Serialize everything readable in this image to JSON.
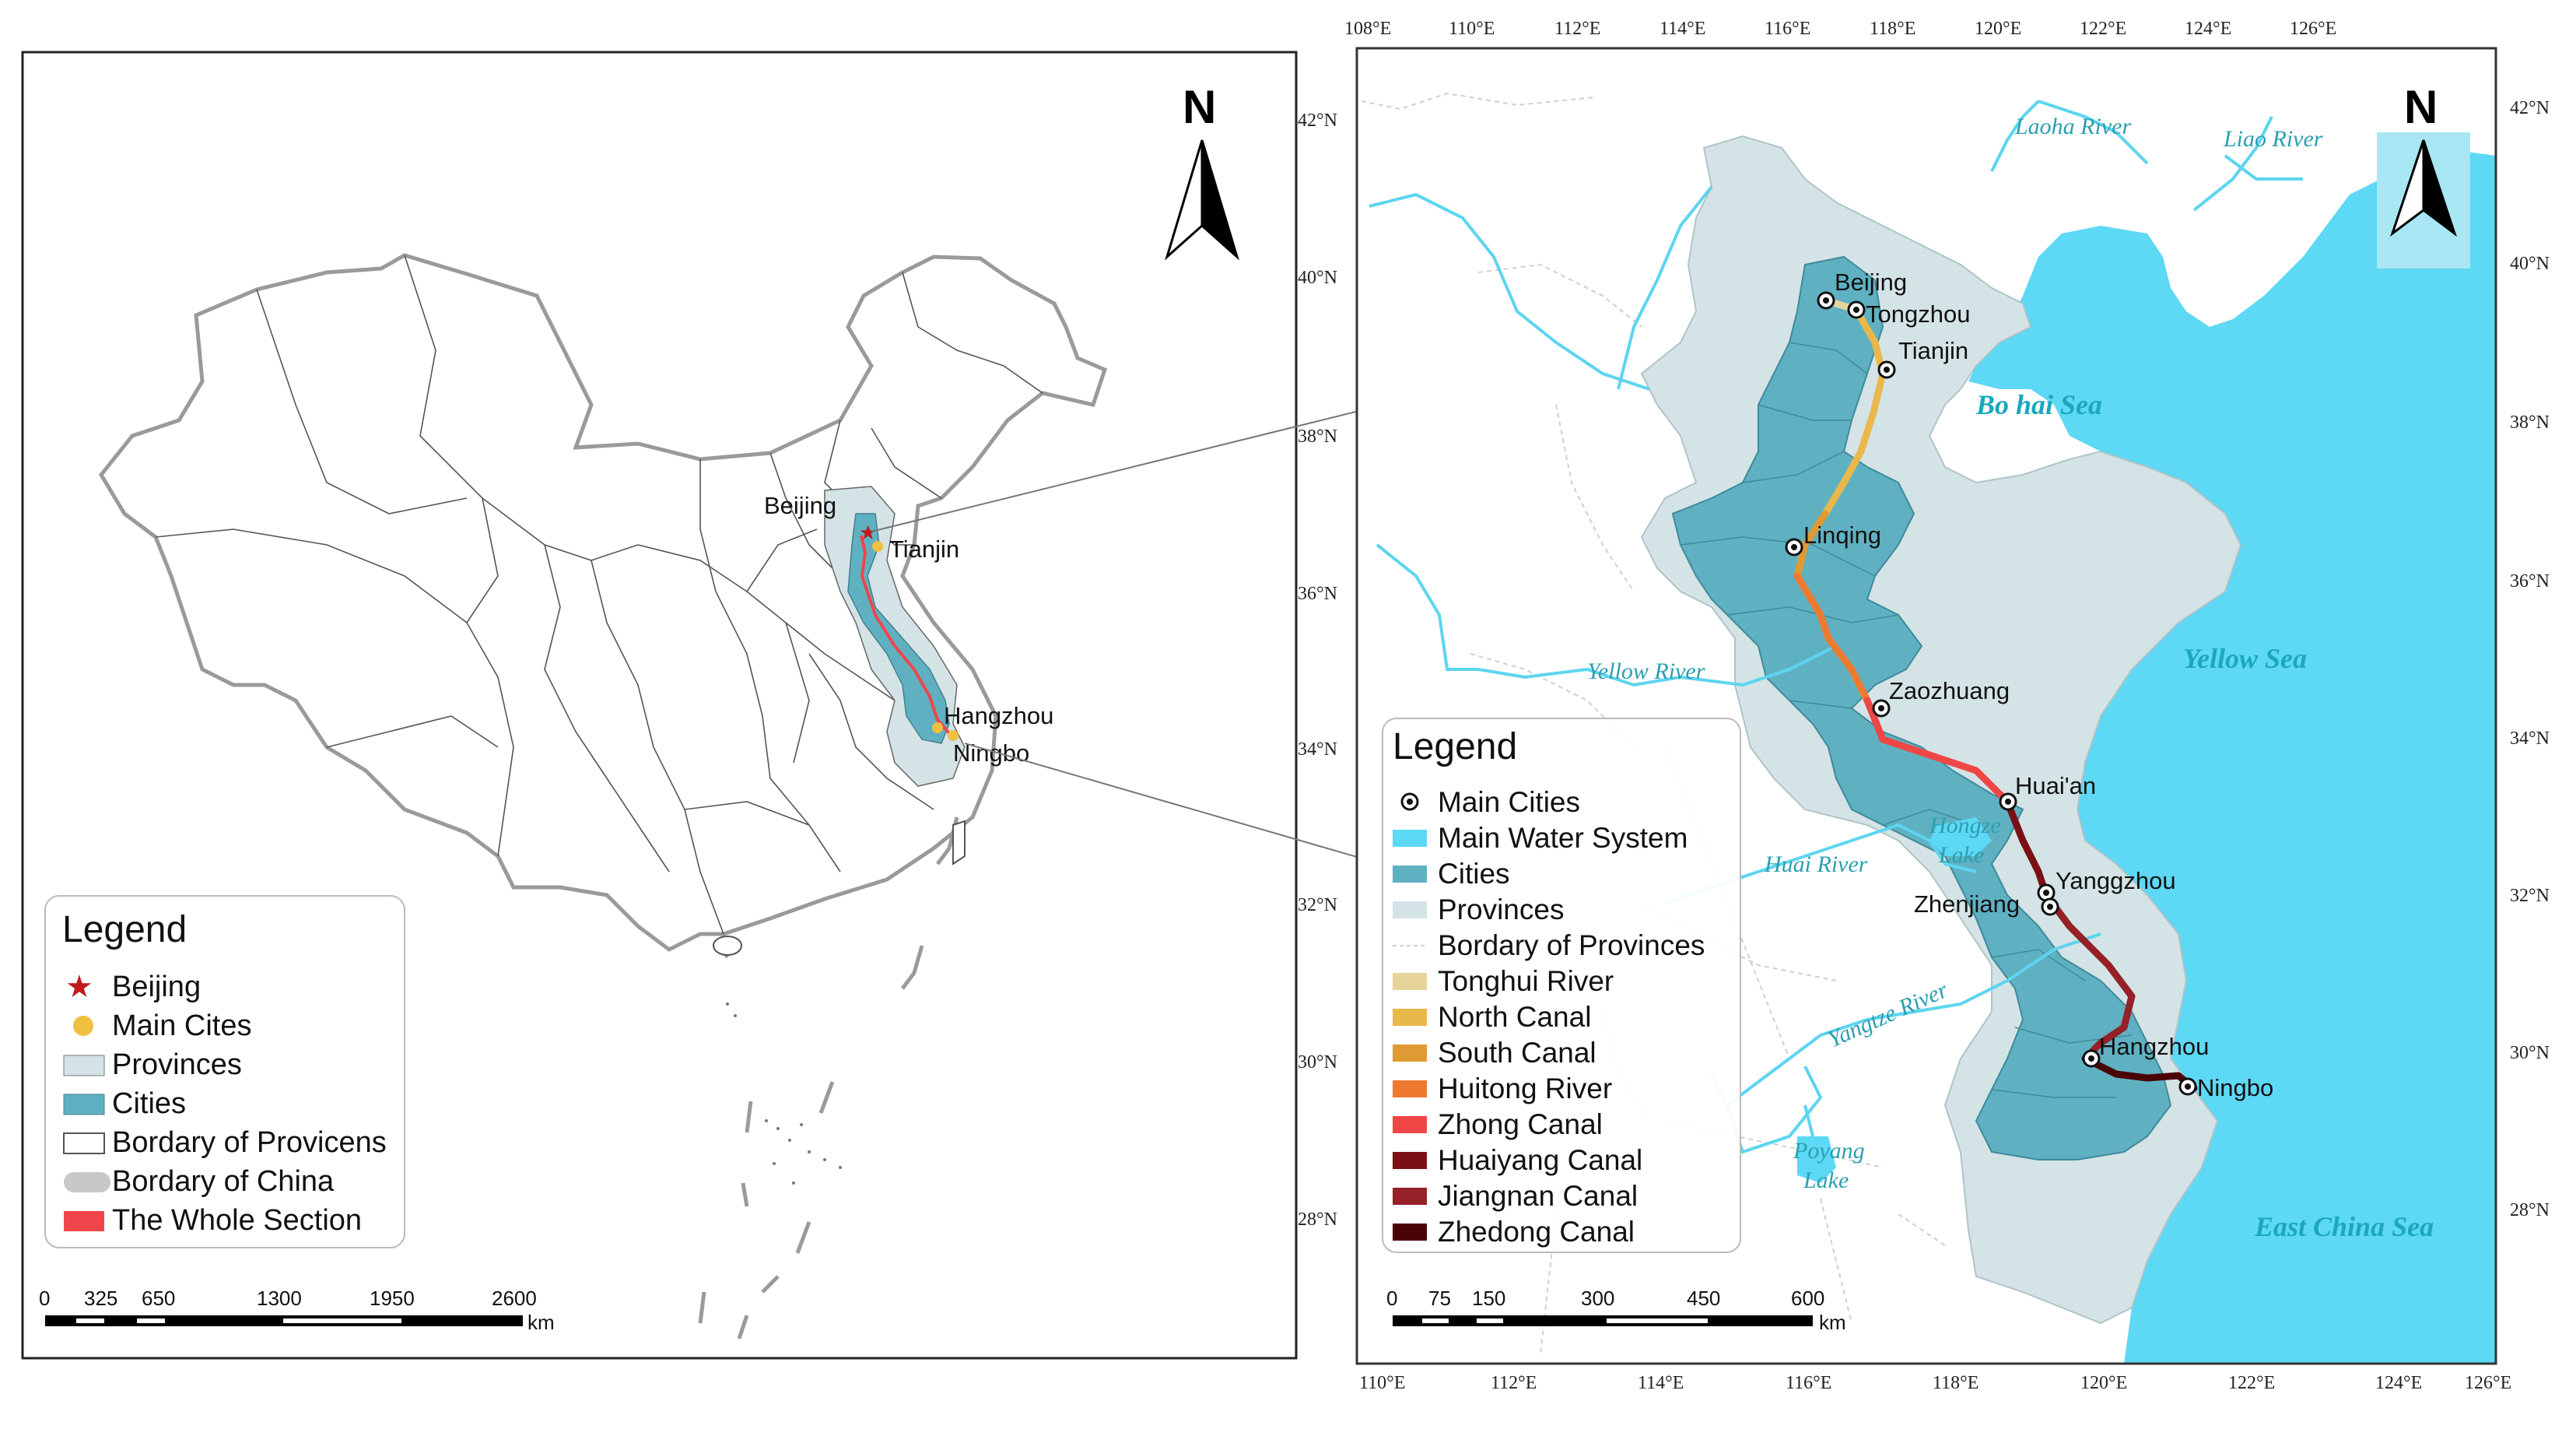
{
  "left_map": {
    "north_label": "N",
    "city_labels": {
      "beijing": "Beijing",
      "tianjin": "Tianjin",
      "hangzhou": "Hangzhou",
      "ningbo": "Ningbo"
    },
    "legend": {
      "title": "Legend",
      "items": [
        "Beijing",
        "Main Cites",
        "Provinces",
        "Cities",
        "Bordary of Provicens",
        "Bordary of China",
        "The Whole Section"
      ]
    },
    "scale": {
      "ticks": [
        "0",
        "325",
        "650",
        "1300",
        "1950",
        "2600"
      ],
      "unit": "km"
    }
  },
  "right_map": {
    "north_label": "N",
    "lon_ticks_top": [
      "108°E",
      "110°E",
      "112°E",
      "114°E",
      "116°E",
      "118°E",
      "120°E",
      "122°E",
      "124°E",
      "126°E"
    ],
    "lon_ticks_bottom": [
      "110°E",
      "112°E",
      "114°E",
      "116°E",
      "118°E",
      "120°E",
      "122°E",
      "124°E",
      "126°E"
    ],
    "lat_ticks": [
      "42°N",
      "40°N",
      "38°N",
      "36°N",
      "34°N",
      "32°N",
      "30°N",
      "28°N"
    ],
    "cities": {
      "beijing": "Beijing",
      "tongzhou": "Tongzhou",
      "tianjin": "Tianjin",
      "linqing": "Linqing",
      "zaozhuang": "Zaozhuang",
      "huaian": "Huai'an",
      "yangzhou": "Yanggzhou",
      "zhenjiang": "Zhenjiang",
      "hangzhou": "Hangzhou",
      "ningbo": "Ningbo"
    },
    "water": {
      "laoha": "Laoha River",
      "liao": "Liao River",
      "yellow_river": "Yellow River",
      "huai": "Huai River",
      "yangtze": "Yangtze River",
      "hongze1": "Hongze",
      "hongze2": "Lake",
      "poyang1": "Poyang",
      "poyang2": "Lake",
      "bohai": "Bo hai Sea",
      "yellow_sea": "Yellow Sea",
      "east_china_sea": "East China Sea"
    },
    "legend": {
      "title": "Legend",
      "items": [
        "Main Cities",
        "Main Water System",
        "Cities",
        "Provinces",
        "Bordary of Provinces",
        "Tonghui River",
        "North Canal",
        "South Canal",
        "Huitong River",
        "Zhong Canal",
        "Huaiyang Canal",
        "Jiangnan Canal",
        "Zhedong Canal"
      ]
    },
    "scale": {
      "ticks": [
        "0",
        "75",
        "150",
        "300",
        "450",
        "600"
      ],
      "unit": "km"
    }
  },
  "colors": {
    "sea": "#5dd8f5",
    "province": "#d4e3e6",
    "city": "#5fb1c2",
    "river": "#5dd5f0",
    "tonghui": "#e6d49a",
    "north_canal": "#e9b84a",
    "south_canal": "#e09a34",
    "huitong": "#ee7a30",
    "zhong": "#ef4646",
    "huaiyang": "#7a1016",
    "jiangnan": "#962028",
    "zhedong": "#4a0408",
    "whole_section": "#f0454a",
    "beijing_star": "#c01a1a",
    "main_cite": "#f0c040"
  }
}
